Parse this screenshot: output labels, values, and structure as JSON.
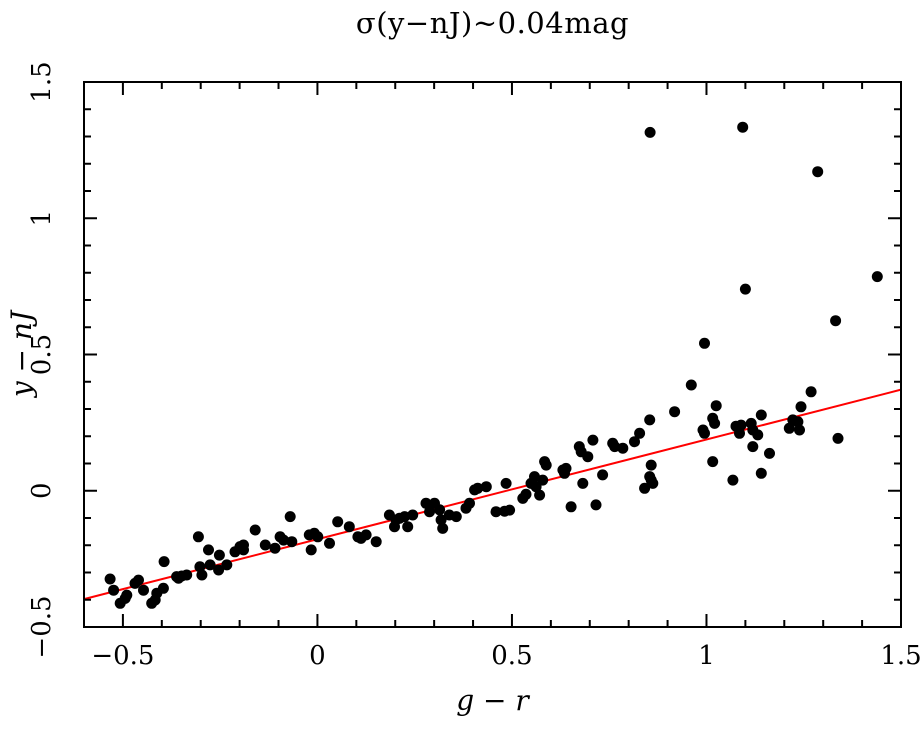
{
  "figure": {
    "background": "#ffffff",
    "axis_color": "#000000",
    "point_color": "#000000",
    "fit_line_color": "#ff0000"
  },
  "chart_data": {
    "type": "scatter",
    "title": "σ(y−nJ)~0.04mag",
    "xlabel": "g − r",
    "ylabel": "y − nJ",
    "xlim": [
      -0.6,
      1.5
    ],
    "ylim": [
      -0.5,
      1.5
    ],
    "grid": false,
    "legend": "none",
    "x_major_ticks": [
      -0.5,
      0,
      0.5,
      1,
      1.5
    ],
    "x_tick_labels": [
      "−0.5",
      "0",
      "0.5",
      "1",
      "1.5"
    ],
    "y_major_ticks": [
      -0.5,
      0,
      0.5,
      1,
      1.5
    ],
    "y_tick_labels": [
      "−0.5",
      "0",
      "0.5",
      "1",
      "1.5"
    ],
    "minor_tick_step": 0.1,
    "fit_line": {
      "slope": 0.366,
      "intercept": -0.178,
      "x_start": -0.6,
      "x_end": 1.5,
      "color": "#ff0000"
    },
    "series_name": "y−nJ vs g−r",
    "points": [
      [
        -0.533,
        -0.324
      ],
      [
        -0.524,
        -0.365
      ],
      [
        -0.507,
        -0.413
      ],
      [
        -0.494,
        -0.395
      ],
      [
        -0.49,
        -0.383
      ],
      [
        -0.469,
        -0.34
      ],
      [
        -0.46,
        -0.328
      ],
      [
        -0.447,
        -0.365
      ],
      [
        -0.426,
        -0.413
      ],
      [
        -0.417,
        -0.401
      ],
      [
        -0.413,
        -0.376
      ],
      [
        -0.396,
        -0.358
      ],
      [
        -0.394,
        -0.26
      ],
      [
        -0.362,
        -0.315
      ],
      [
        -0.357,
        -0.321
      ],
      [
        -0.349,
        -0.313
      ],
      [
        -0.336,
        -0.309
      ],
      [
        -0.306,
        -0.169
      ],
      [
        -0.302,
        -0.279
      ],
      [
        -0.297,
        -0.309
      ],
      [
        -0.28,
        -0.217
      ],
      [
        -0.276,
        -0.272
      ],
      [
        -0.254,
        -0.291
      ],
      [
        -0.252,
        -0.236
      ],
      [
        -0.233,
        -0.272
      ],
      [
        -0.212,
        -0.224
      ],
      [
        -0.199,
        -0.205
      ],
      [
        -0.19,
        -0.217
      ],
      [
        -0.19,
        -0.199
      ],
      [
        -0.16,
        -0.144
      ],
      [
        -0.134,
        -0.199
      ],
      [
        -0.109,
        -0.211
      ],
      [
        -0.096,
        -0.169
      ],
      [
        -0.087,
        -0.181
      ],
      [
        -0.07,
        -0.095
      ],
      [
        -0.066,
        -0.187
      ],
      [
        -0.021,
        -0.162
      ],
      [
        -0.016,
        -0.217
      ],
      [
        -0.008,
        -0.156
      ],
      [
        0.001,
        -0.169
      ],
      [
        0.031,
        -0.193
      ],
      [
        0.052,
        -0.114
      ],
      [
        0.082,
        -0.132
      ],
      [
        0.104,
        -0.169
      ],
      [
        0.112,
        -0.175
      ],
      [
        0.125,
        -0.162
      ],
      [
        0.151,
        -0.187
      ],
      [
        0.185,
        -0.089
      ],
      [
        0.198,
        -0.132
      ],
      [
        0.202,
        -0.107
      ],
      [
        0.211,
        -0.101
      ],
      [
        0.224,
        -0.095
      ],
      [
        0.232,
        -0.132
      ],
      [
        0.245,
        -0.089
      ],
      [
        0.279,
        -0.046
      ],
      [
        0.288,
        -0.077
      ],
      [
        0.301,
        -0.046
      ],
      [
        0.314,
        -0.07
      ],
      [
        0.318,
        -0.107
      ],
      [
        0.322,
        -0.138
      ],
      [
        0.339,
        -0.089
      ],
      [
        0.357,
        -0.095
      ],
      [
        0.382,
        -0.064
      ],
      [
        0.391,
        -0.046
      ],
      [
        0.404,
        0.003
      ],
      [
        0.412,
        0.009
      ],
      [
        0.434,
        0.015
      ],
      [
        0.459,
        -0.077
      ],
      [
        0.481,
        -0.075
      ],
      [
        0.485,
        0.027
      ],
      [
        0.494,
        -0.071
      ],
      [
        0.528,
        -0.028
      ],
      [
        0.536,
        -0.013
      ],
      [
        0.549,
        0.027
      ],
      [
        0.558,
        0.052
      ],
      [
        0.562,
        0.015
      ],
      [
        0.571,
        -0.016
      ],
      [
        0.579,
        0.039
      ],
      [
        0.584,
        0.107
      ],
      [
        0.588,
        0.094
      ],
      [
        0.631,
        0.076
      ],
      [
        0.635,
        0.064
      ],
      [
        0.639,
        0.082
      ],
      [
        0.652,
        -0.059
      ],
      [
        0.673,
        0.162
      ],
      [
        0.678,
        0.143
      ],
      [
        0.682,
        0.027
      ],
      [
        0.695,
        0.125
      ],
      [
        0.708,
        0.186
      ],
      [
        0.716,
        -0.052
      ],
      [
        0.733,
        0.058
      ],
      [
        0.759,
        0.174
      ],
      [
        0.764,
        0.162
      ],
      [
        0.785,
        0.156
      ],
      [
        0.815,
        0.18
      ],
      [
        0.828,
        0.211
      ],
      [
        0.841,
        0.009
      ],
      [
        0.854,
        0.26
      ],
      [
        0.854,
        0.052
      ],
      [
        0.855,
        1.315
      ],
      [
        0.858,
        0.094
      ],
      [
        0.858,
        0.039
      ],
      [
        0.862,
        0.027
      ],
      [
        0.918,
        0.29
      ],
      [
        0.961,
        0.388
      ],
      [
        0.991,
        0.223
      ],
      [
        0.995,
        0.211
      ],
      [
        0.995,
        0.541
      ],
      [
        1.016,
        0.107
      ],
      [
        1.016,
        0.266
      ],
      [
        1.021,
        0.247
      ],
      [
        1.025,
        0.312
      ],
      [
        1.068,
        0.039
      ],
      [
        1.076,
        0.237
      ],
      [
        1.085,
        0.211
      ],
      [
        1.089,
        0.241
      ],
      [
        1.093,
        1.334
      ],
      [
        1.1,
        0.74
      ],
      [
        1.115,
        0.247
      ],
      [
        1.119,
        0.223
      ],
      [
        1.119,
        0.162
      ],
      [
        1.132,
        0.205
      ],
      [
        1.141,
        0.278
      ],
      [
        1.141,
        0.064
      ],
      [
        1.162,
        0.137
      ],
      [
        1.213,
        0.229
      ],
      [
        1.222,
        0.26
      ],
      [
        1.235,
        0.253
      ],
      [
        1.239,
        0.223
      ],
      [
        1.243,
        0.308
      ],
      [
        1.269,
        0.363
      ],
      [
        1.286,
        1.171
      ],
      [
        1.332,
        0.624
      ],
      [
        1.338,
        0.192
      ],
      [
        1.439,
        0.786
      ]
    ]
  }
}
